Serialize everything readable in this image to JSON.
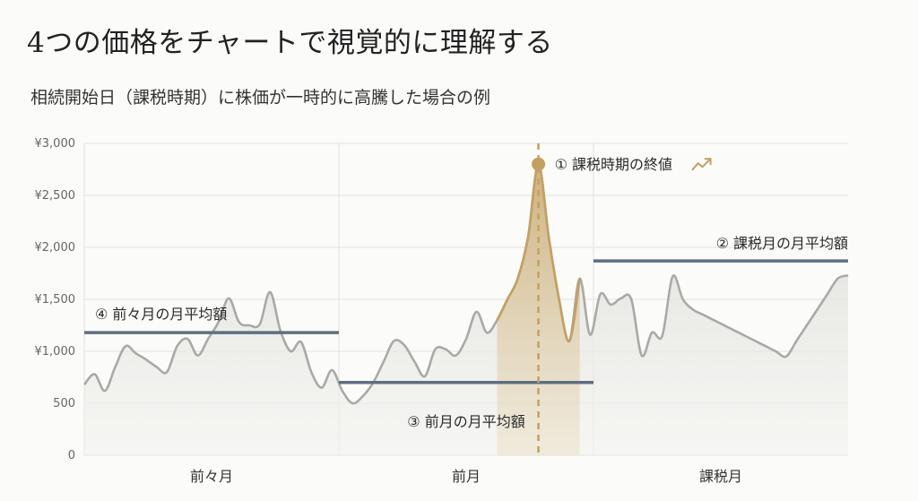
{
  "title": "4つの価格をチャートで視覚的に理解する",
  "subtitle": "相続開始日（課税時期）に株価が一時的に高騰した場合の例",
  "colors": {
    "price_line": "#a9a9a6",
    "price_fill": "#e2e2df",
    "average_line": "#5f6e80",
    "highlight": "#c4a060",
    "grid": "#e1e1dd"
  },
  "chart_data": {
    "type": "line",
    "title": "4つの価格をチャートで視覚的に理解する",
    "subtitle": "相続開始日（課税時期）に株価が一時的に高騰した場合の例",
    "categories": [
      "前々月",
      "前月",
      "課税月"
    ],
    "ylim": [
      0,
      3000
    ],
    "y_ticks": [
      "0",
      "500",
      "¥1,000",
      "¥1,500",
      "¥2,000",
      "¥2,500",
      "¥3,000"
    ],
    "grid": true,
    "x": [
      0,
      0.2,
      0.4,
      0.6,
      0.8,
      1.0,
      1.2,
      1.4,
      1.6,
      1.8,
      2.0,
      2.2,
      2.4,
      2.6,
      2.8,
      3.0,
      3.2,
      3.4,
      3.6,
      3.8,
      4.0,
      4.2,
      4.4,
      4.6,
      4.8,
      5.0,
      5.2,
      5.4,
      5.6,
      5.8,
      6.0,
      6.2,
      6.4,
      6.6,
      6.8,
      7.0,
      7.2,
      7.4,
      7.6,
      7.8,
      8.0,
      8.2,
      8.4,
      8.6,
      8.8,
      9.0,
      9.2,
      9.4,
      9.6,
      9.8,
      10.0,
      10.2,
      10.4,
      10.6,
      10.8,
      11.0,
      11.2,
      11.4,
      11.6,
      11.8,
      12.0,
      12.2,
      12.4,
      12.6,
      12.8,
      13.0,
      13.2,
      13.4,
      13.6,
      13.8,
      14.0,
      14.2,
      14.4,
      14.6,
      14.8
    ],
    "series": [
      {
        "values": [
          680,
          780,
          620,
          850,
          1050,
          980,
          920,
          850,
          800,
          1050,
          1120,
          960,
          1120,
          1280,
          1510,
          1280,
          1250,
          1260,
          1570,
          1200,
          1000,
          1090,
          800,
          650,
          820,
          620,
          500,
          570,
          700,
          900,
          1100,
          1060,
          900,
          760,
          1020,
          1020,
          960,
          1120,
          1380,
          1180,
          1300,
          1500,
          1700,
          2100,
          2800,
          2100,
          1500,
          1100,
          1700,
          1160,
          1550,
          1450,
          1510,
          1500,
          960,
          1180,
          1150,
          1720,
          1500,
          1400,
          1350,
          1300,
          1250,
          1200,
          1150,
          1100,
          1050,
          1000,
          950,
          1100,
          1250,
          1400,
          1550,
          1700,
          1730
        ]
      }
    ],
    "reference_lines": [
      {
        "label": "④ 前々月の月平均額",
        "value": 1180,
        "x_start": 0,
        "x_end": 1
      },
      {
        "label": "③ 前月の月平均額",
        "value": 700,
        "x_start": 1,
        "x_end": 2
      },
      {
        "label": "② 課税月の月平均額",
        "value": 1870,
        "x_start": 2,
        "x_end": 3
      }
    ],
    "highlight_point": {
      "label": "① 課税時期の終値",
      "value": 2800
    }
  }
}
